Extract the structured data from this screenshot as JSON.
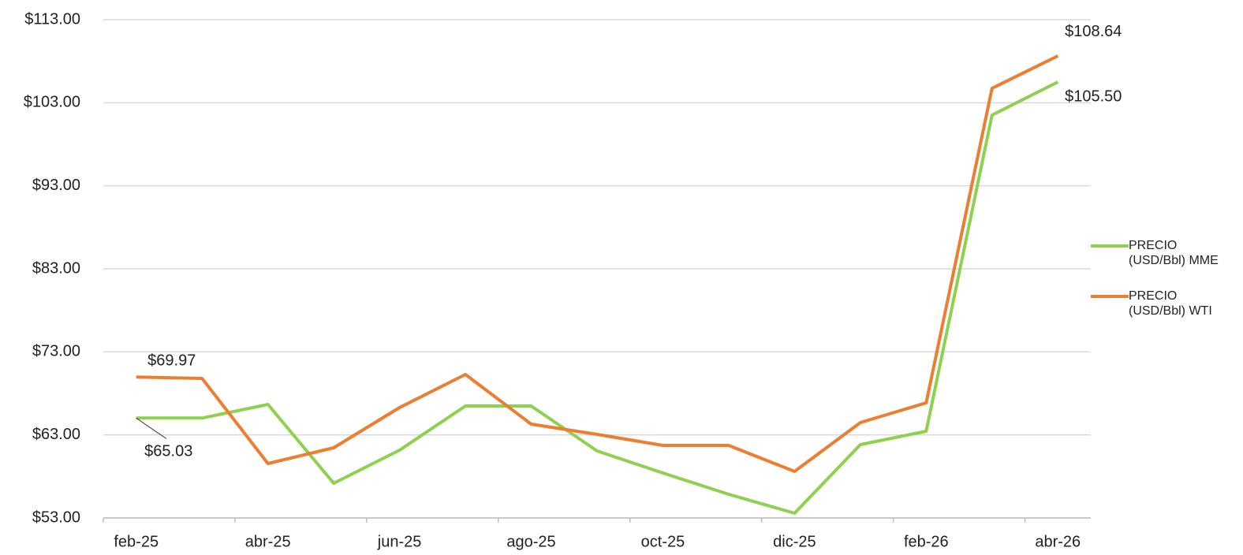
{
  "chart_data": {
    "type": "line",
    "categories": [
      "feb-25",
      null,
      "abr-25",
      null,
      "jun-25",
      null,
      "ago-25",
      null,
      "oct-25",
      null,
      "dic-25",
      null,
      "feb-26",
      null,
      "abr-26"
    ],
    "series": [
      {
        "name": "PRECIO (USD/Bbl) MME",
        "color": "#8dd14f",
        "values": [
          65.03,
          65.03,
          66.67,
          57.18,
          61.16,
          66.48,
          66.48,
          61.07,
          58.41,
          55.85,
          53.57,
          61.83,
          63.44,
          101.51,
          105.5
        ],
        "value_labels": [
          "$65.03",
          null,
          null,
          null,
          null,
          null,
          null,
          null,
          null,
          null,
          null,
          null,
          null,
          null,
          "$105.50"
        ]
      },
      {
        "name": "PRECIO (USD/Bbl) WTI",
        "color": "#ed7d31",
        "values": [
          69.97,
          69.8,
          59.55,
          61.45,
          66.29,
          70.28,
          64.3,
          63.06,
          61.73,
          61.73,
          58.6,
          64.49,
          66.86,
          104.74,
          108.64
        ],
        "value_labels": [
          "$69.97",
          null,
          null,
          null,
          null,
          null,
          null,
          null,
          null,
          null,
          null,
          null,
          null,
          null,
          "$108.64"
        ]
      }
    ],
    "ylim": [
      53,
      113
    ],
    "yticks": [
      {
        "value": 53,
        "label": "$53.00"
      },
      {
        "value": 63,
        "label": "$63.00"
      },
      {
        "value": 73,
        "label": "$73.00"
      },
      {
        "value": 83,
        "label": "$83.00"
      },
      {
        "value": 93,
        "label": "$93.00"
      },
      {
        "value": 103,
        "label": "$103.00"
      },
      {
        "value": 113,
        "label": "$113.00"
      }
    ],
    "grid": true,
    "legend": "right"
  }
}
